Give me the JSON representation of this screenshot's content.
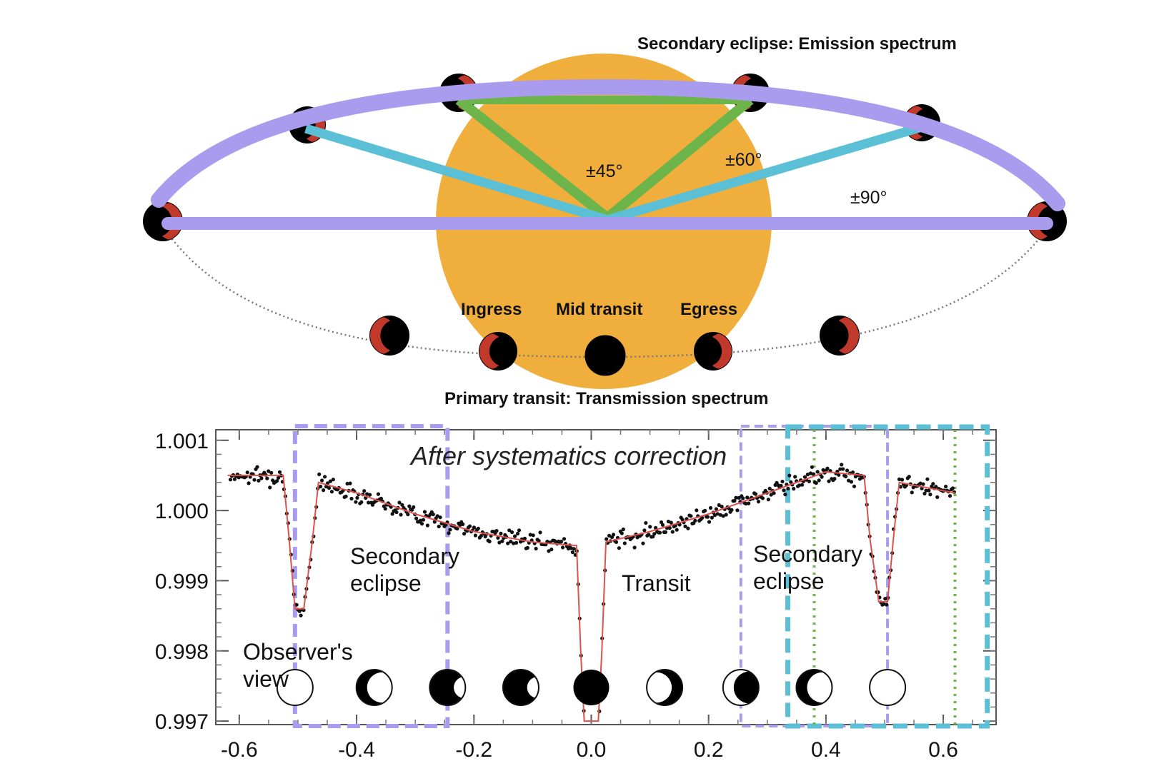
{
  "orbit_diagram": {
    "top_label": "Secondary eclipse: Emission spectrum",
    "bottom_label": "Primary transit: Transmission spectrum",
    "angle_labels": [
      "±45°",
      "±60°",
      "±90°"
    ],
    "transit_labels": [
      "Ingress",
      "Mid transit",
      "Egress"
    ],
    "colors": {
      "star": "#F0AE3C",
      "planet_day": "#C0392B",
      "planet_night": "#000000",
      "purple": "#A99BEE",
      "cyan": "#5BC0D6",
      "green": "#6DB54A",
      "orbit_dots": "#777777"
    }
  },
  "chart_data": {
    "type": "scatter",
    "title": "After systematics correction",
    "xlim": [
      -0.64,
      0.69
    ],
    "ylim": [
      0.99695,
      1.00115
    ],
    "x_ticks": [
      "-0.6",
      "-0.4",
      "-0.2",
      "0.0",
      "0.2",
      "0.4",
      "0.6"
    ],
    "y_ticks": [
      "0.997",
      "0.998",
      "0.999",
      "1.000",
      "1.001"
    ],
    "annotations": [
      "Secondary eclipse",
      "Transit",
      "Secondary eclipse",
      "Observer's view"
    ],
    "model_curve": {
      "color": "#D9534F",
      "x": [
        -0.62,
        -0.525,
        -0.515,
        -0.505,
        -0.49,
        -0.475,
        -0.465,
        -0.4,
        -0.3,
        -0.2,
        -0.1,
        -0.025,
        -0.018,
        -0.012,
        0.012,
        0.018,
        0.025,
        0.1,
        0.2,
        0.3,
        0.4,
        0.465,
        0.475,
        0.49,
        0.505,
        0.515,
        0.525,
        0.62
      ],
      "y": [
        1.0005,
        1.0005,
        0.9996,
        0.9986,
        0.9986,
        0.9996,
        1.0004,
        1.00025,
        0.99995,
        0.9997,
        0.99955,
        0.9995,
        0.998,
        0.997,
        0.997,
        0.998,
        0.99955,
        0.9997,
        0.99995,
        1.00025,
        1.00055,
        1.0005,
        0.9996,
        0.9987,
        0.9987,
        0.9996,
        1.0004,
        1.00025
      ]
    },
    "observer_phases": [
      -0.505,
      -0.37,
      -0.245,
      -0.12,
      0.0,
      0.125,
      0.255,
      0.38,
      0.505
    ],
    "purple_dashed_boxes": [
      [
        -0.505,
        -0.245
      ],
      [
        0.255,
        0.505
      ]
    ],
    "cyan_dashed_box": [
      0.335,
      0.675
    ],
    "green_dotted_lines": [
      0.38,
      0.62
    ],
    "purple_dashed_line": 0.505
  }
}
